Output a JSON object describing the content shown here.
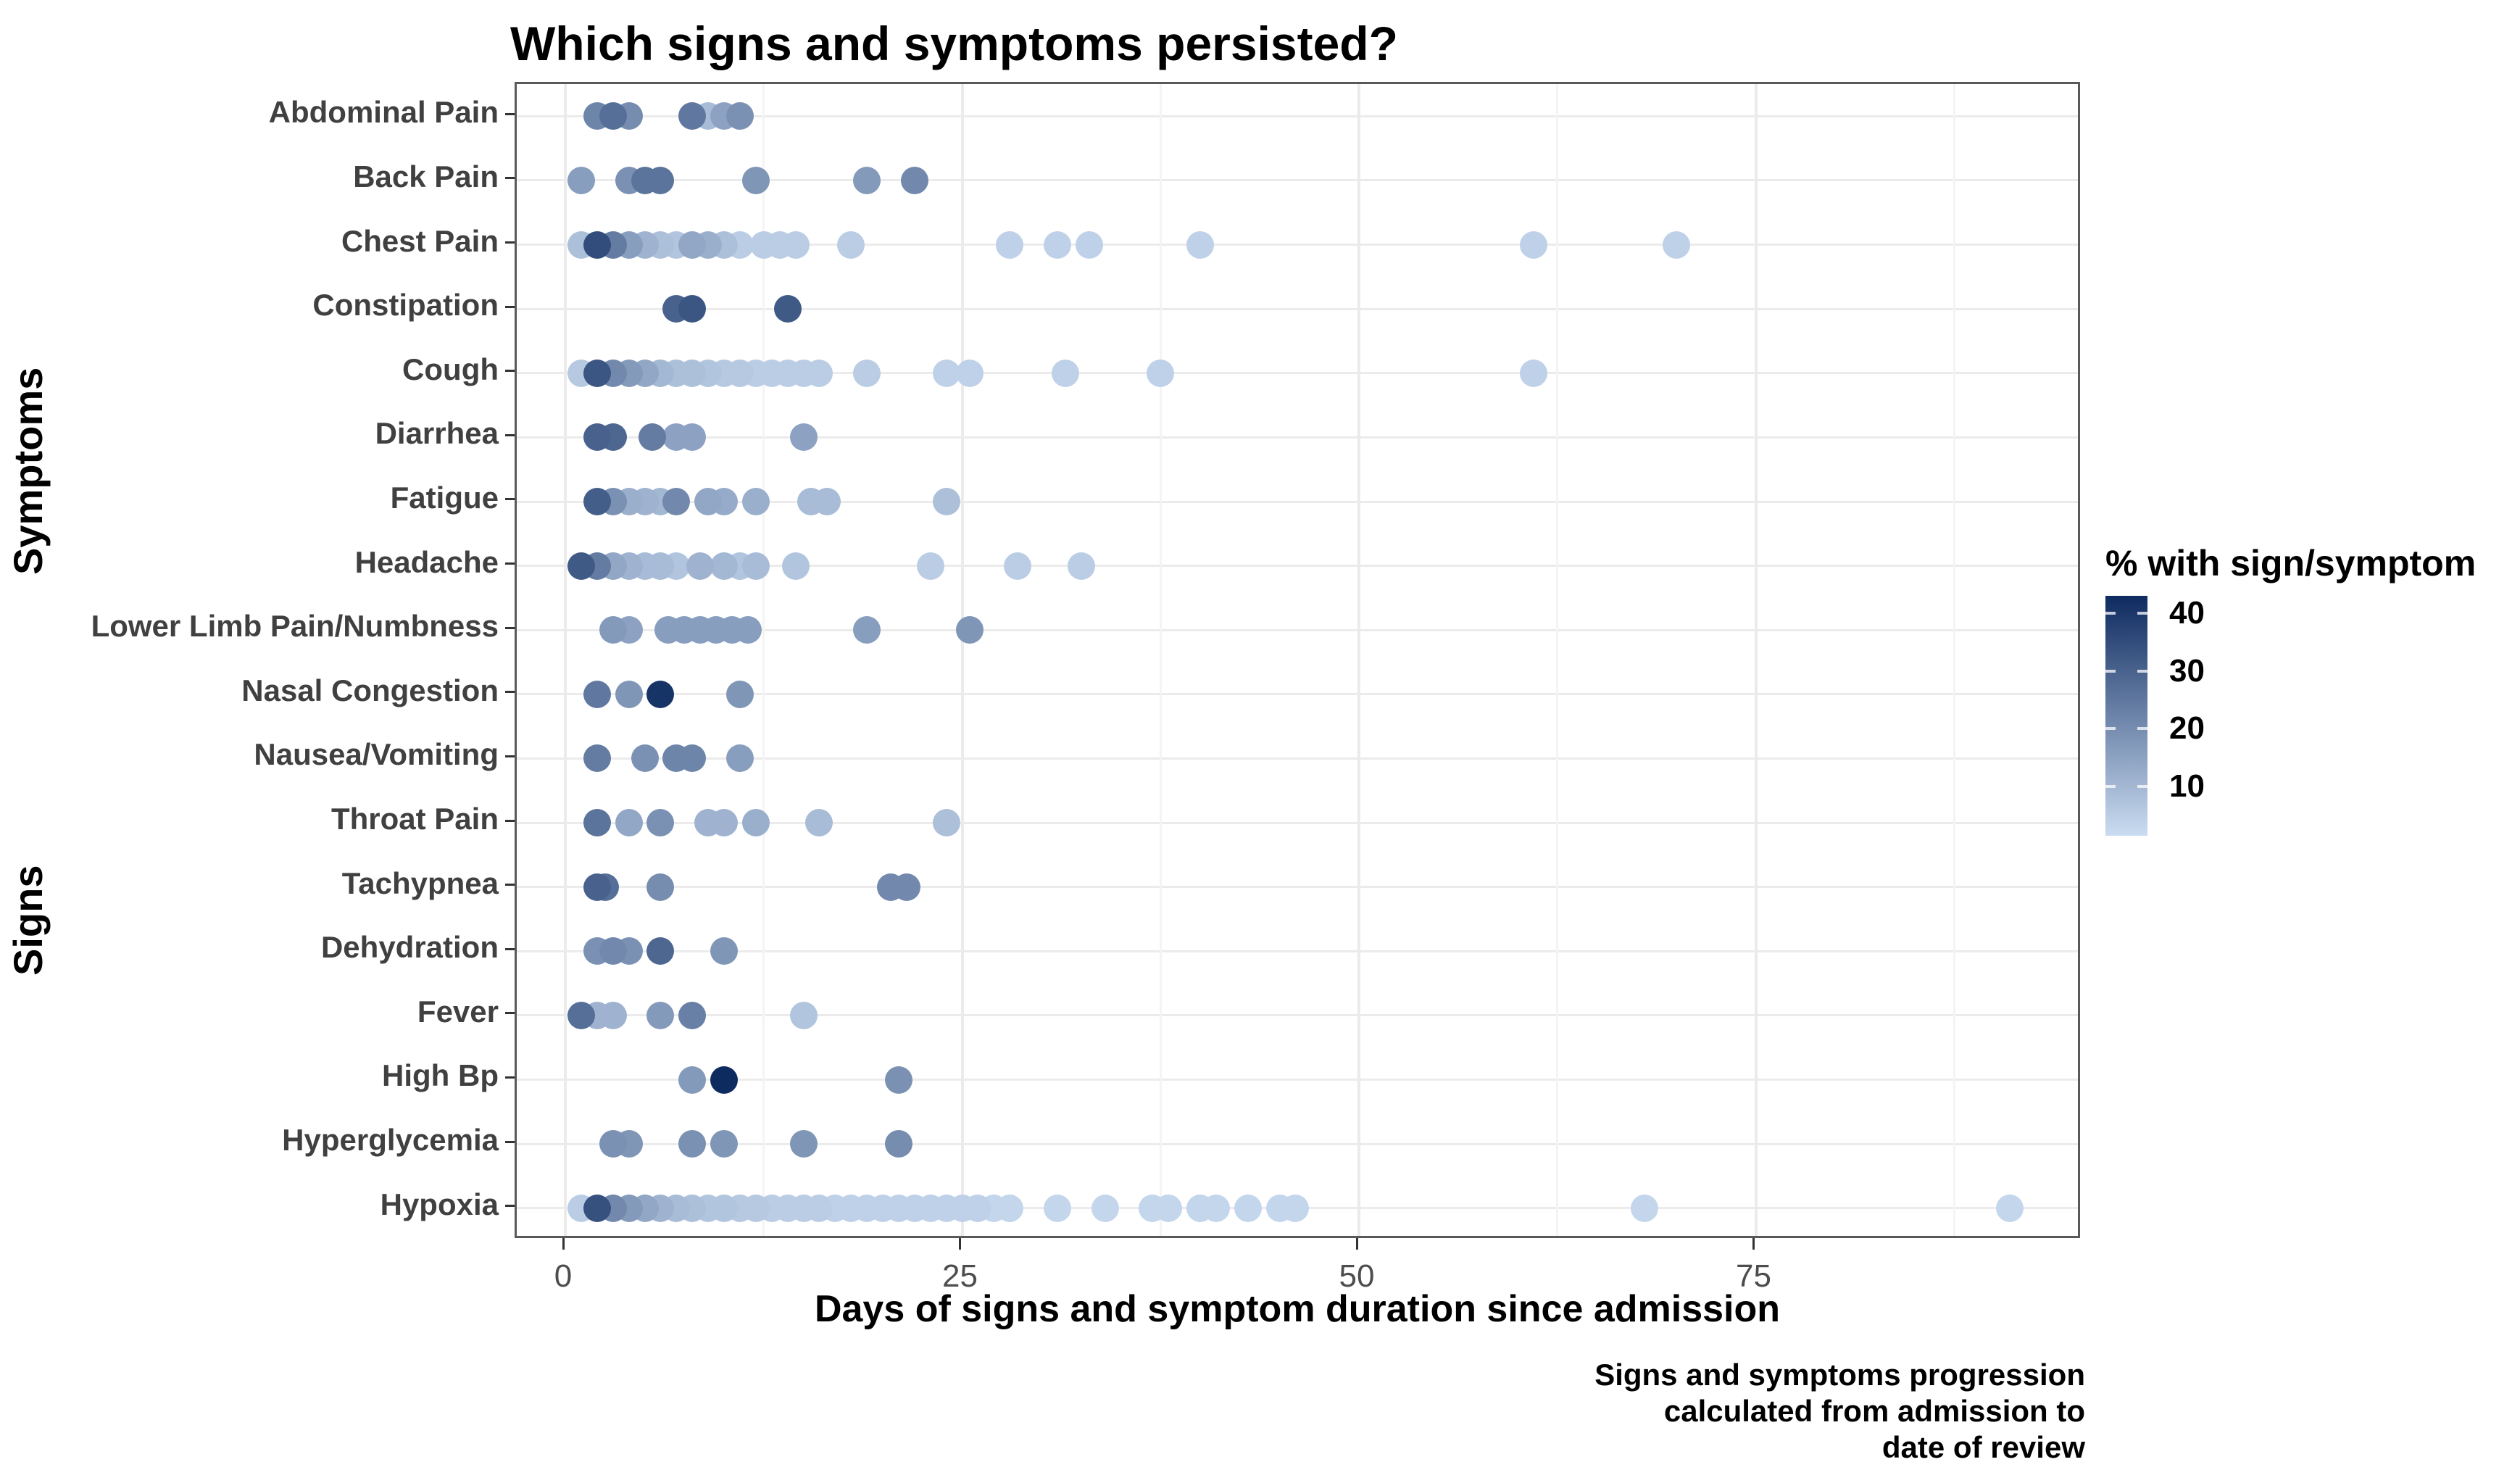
{
  "title": "Which signs and symptoms persisted?",
  "x_axis": {
    "label": "Days of signs and symptom duration since admission",
    "ticks": [
      0,
      25,
      50,
      75
    ],
    "minor_ticks": [
      12.5,
      37.5,
      62.5,
      87.5
    ]
  },
  "y_axis": {
    "group_labels": [
      {
        "text": "Symptoms",
        "center_y": 650
      },
      {
        "text": "Signs",
        "center_y": 1270
      }
    ]
  },
  "legend": {
    "title": "% with sign/symptom",
    "tick_values": [
      40,
      30,
      20,
      10
    ],
    "scale_min": 1.5,
    "scale_max": 43
  },
  "caption_lines": [
    "Signs and symptoms progression",
    "calculated from admission to",
    "date of review"
  ],
  "colors": {
    "low": "#CADCF1",
    "high": "#0E2B60",
    "grid_major": "#EBEBEB",
    "grid_minor": "#F4F4F4",
    "panel_border": "#595959",
    "axis_text": "#404040",
    "tick_text": "#4D4D4D"
  },
  "chart_data": {
    "type": "scatter",
    "title": "Which signs and symptoms persisted?",
    "xlabel": "Days of signs and symptom duration since admission",
    "ylabel_groups": [
      "Symptoms",
      "Signs"
    ],
    "x_range": [
      -3,
      95.6
    ],
    "color_variable": "% with sign/symptom",
    "color_range": [
      1.5,
      43
    ],
    "legend_position": "right",
    "grid": true,
    "rows": [
      {
        "label": "Abdominal Pain",
        "dots": [
          [
            2,
            22
          ],
          [
            3,
            27
          ],
          [
            4,
            20
          ],
          [
            8,
            25
          ],
          [
            9,
            9
          ],
          [
            10,
            15
          ],
          [
            11,
            19
          ]
        ]
      },
      {
        "label": "Back Pain",
        "dots": [
          [
            1,
            16
          ],
          [
            4,
            19
          ],
          [
            5,
            26
          ],
          [
            6,
            26
          ],
          [
            12,
            18
          ],
          [
            19,
            17
          ],
          [
            22,
            21
          ]
        ]
      },
      {
        "label": "Chest Pain",
        "dots": [
          [
            1,
            8
          ],
          [
            2,
            35
          ],
          [
            3,
            24
          ],
          [
            4,
            16
          ],
          [
            5,
            11
          ],
          [
            6,
            8
          ],
          [
            7,
            7
          ],
          [
            8,
            14
          ],
          [
            9,
            12
          ],
          [
            10,
            8
          ],
          [
            11,
            5
          ],
          [
            12.5,
            5
          ],
          [
            13.5,
            5
          ],
          [
            14.5,
            5
          ],
          [
            18,
            5
          ],
          [
            28,
            4
          ],
          [
            31,
            4
          ],
          [
            33,
            4
          ],
          [
            40,
            4
          ],
          [
            61,
            4
          ],
          [
            70,
            4
          ]
        ]
      },
      {
        "label": "Constipation",
        "dots": [
          [
            7,
            30
          ],
          [
            8,
            33
          ],
          [
            14,
            32
          ]
        ]
      },
      {
        "label": "Cough",
        "dots": [
          [
            1,
            6
          ],
          [
            2,
            33
          ],
          [
            3,
            21
          ],
          [
            4,
            17
          ],
          [
            5,
            14
          ],
          [
            6,
            10
          ],
          [
            7,
            8
          ],
          [
            8,
            8
          ],
          [
            9,
            7
          ],
          [
            10,
            6
          ],
          [
            11,
            6
          ],
          [
            12,
            5
          ],
          [
            13,
            5
          ],
          [
            14,
            5
          ],
          [
            15,
            5
          ],
          [
            16,
            5
          ],
          [
            19,
            5
          ],
          [
            24,
            4
          ],
          [
            25.5,
            4
          ],
          [
            31.5,
            4
          ],
          [
            37.5,
            4
          ],
          [
            61,
            4
          ]
        ]
      },
      {
        "label": "Diarrhea",
        "dots": [
          [
            2,
            30
          ],
          [
            3,
            29
          ],
          [
            5.5,
            24
          ],
          [
            7,
            15
          ],
          [
            8,
            15
          ],
          [
            15,
            15
          ]
        ]
      },
      {
        "label": "Fatigue",
        "dots": [
          [
            2,
            31
          ],
          [
            3,
            19
          ],
          [
            4,
            12
          ],
          [
            5,
            11
          ],
          [
            6,
            10
          ],
          [
            7,
            21
          ],
          [
            9,
            14
          ],
          [
            10,
            13
          ],
          [
            12,
            12
          ],
          [
            15.5,
            9
          ],
          [
            16.5,
            9
          ],
          [
            24,
            8
          ]
        ]
      },
      {
        "label": "Headache",
        "dots": [
          [
            1,
            32
          ],
          [
            2,
            24
          ],
          [
            3,
            14
          ],
          [
            4,
            11
          ],
          [
            5,
            9
          ],
          [
            6,
            9
          ],
          [
            7,
            7
          ],
          [
            8.5,
            11
          ],
          [
            10,
            10
          ],
          [
            11,
            7
          ],
          [
            12,
            9
          ],
          [
            14.5,
            7
          ],
          [
            23,
            5
          ],
          [
            28.5,
            5
          ],
          [
            32.5,
            5
          ]
        ]
      },
      {
        "label": "Lower Limb Pain/Numbness",
        "dots": [
          [
            3,
            17
          ],
          [
            4,
            15
          ],
          [
            6.5,
            16
          ],
          [
            7.5,
            16
          ],
          [
            8.5,
            16
          ],
          [
            9.5,
            16
          ],
          [
            10.5,
            16
          ],
          [
            11.5,
            16
          ],
          [
            19,
            16
          ],
          [
            25.5,
            18
          ]
        ]
      },
      {
        "label": "Nasal Congestion",
        "dots": [
          [
            2,
            25
          ],
          [
            4,
            18
          ],
          [
            6,
            41
          ],
          [
            11,
            18
          ]
        ]
      },
      {
        "label": "Nausea/Vomiting",
        "dots": [
          [
            2,
            24
          ],
          [
            5,
            19
          ],
          [
            7,
            22
          ],
          [
            8,
            22
          ],
          [
            11,
            16
          ]
        ]
      },
      {
        "label": "Throat Pain",
        "dots": [
          [
            2,
            26
          ],
          [
            4,
            14
          ],
          [
            6,
            19
          ],
          [
            9,
            11
          ],
          [
            10,
            11
          ],
          [
            12,
            12
          ],
          [
            16,
            9
          ],
          [
            24,
            8
          ]
        ]
      },
      {
        "label": "Tachypnea",
        "dots": [
          [
            2,
            30
          ],
          [
            2.5,
            27
          ],
          [
            6,
            20
          ],
          [
            20.5,
            21
          ],
          [
            21.5,
            21
          ]
        ]
      },
      {
        "label": "Dehydration",
        "dots": [
          [
            2,
            19
          ],
          [
            3,
            21
          ],
          [
            4,
            19
          ],
          [
            6,
            29
          ],
          [
            10,
            18
          ]
        ]
      },
      {
        "label": "Fever",
        "dots": [
          [
            1,
            27
          ],
          [
            2,
            11
          ],
          [
            3,
            11
          ],
          [
            6,
            17
          ],
          [
            8,
            23
          ],
          [
            15,
            7
          ]
        ]
      },
      {
        "label": "High Bp",
        "dots": [
          [
            8,
            17
          ],
          [
            10,
            43
          ],
          [
            21,
            19
          ]
        ]
      },
      {
        "label": "Hyperglycemia",
        "dots": [
          [
            3,
            19
          ],
          [
            4,
            18
          ],
          [
            8,
            19
          ],
          [
            10,
            18
          ],
          [
            15,
            18
          ],
          [
            21,
            20
          ]
        ]
      },
      {
        "label": "Hypoxia",
        "dots": [
          [
            1,
            5
          ],
          [
            2,
            34
          ],
          [
            3,
            21
          ],
          [
            4,
            17
          ],
          [
            5,
            14
          ],
          [
            6,
            11
          ],
          [
            7,
            9
          ],
          [
            8,
            8
          ],
          [
            9,
            7
          ],
          [
            10,
            7
          ],
          [
            11,
            6
          ],
          [
            12,
            6
          ],
          [
            13,
            5
          ],
          [
            14,
            5
          ],
          [
            15,
            5
          ],
          [
            16,
            5
          ],
          [
            17,
            4
          ],
          [
            18,
            4
          ],
          [
            19,
            4
          ],
          [
            20,
            4
          ],
          [
            21,
            4
          ],
          [
            22,
            4
          ],
          [
            23,
            4
          ],
          [
            24,
            4
          ],
          [
            25,
            4
          ],
          [
            26,
            4
          ],
          [
            27,
            3
          ],
          [
            28,
            3
          ],
          [
            31,
            3
          ],
          [
            34,
            3
          ],
          [
            37,
            3
          ],
          [
            38,
            3
          ],
          [
            40,
            3
          ],
          [
            41,
            3
          ],
          [
            43,
            3
          ],
          [
            45,
            3
          ],
          [
            46,
            3
          ],
          [
            68,
            3
          ],
          [
            91,
            3
          ]
        ]
      }
    ]
  }
}
